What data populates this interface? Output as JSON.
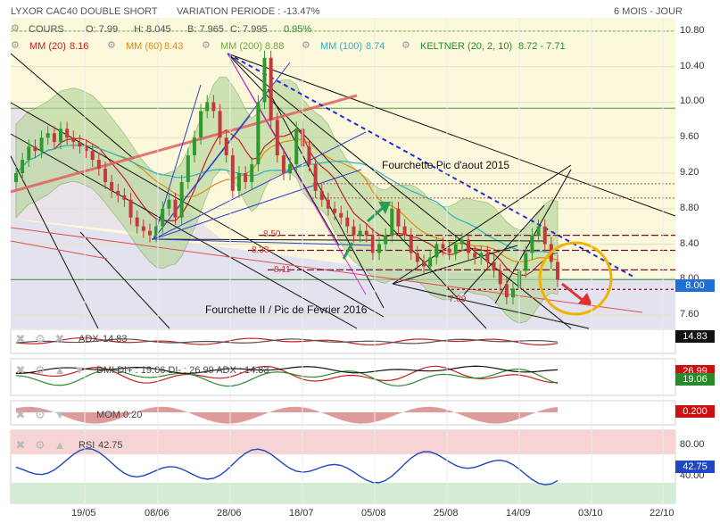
{
  "header": {
    "title": "LYXOR CAC40 DOUBLE SHORT",
    "variation": "VARIATION PERIODE : -13.47%",
    "period": "6 MOIS - JOUR"
  },
  "legend": {
    "cours_label": "COURS",
    "open": "O: 7.99",
    "high": "H: 8.045",
    "low": "B: 7.965",
    "close": "C: 7.995",
    "change": "0.95%",
    "mm20": "MM (20)",
    "mm20_val": "8.16",
    "mm60": "MM (60)",
    "mm60_val": "8.43",
    "mm200": "MM (200)",
    "mm200_val": "8.88",
    "mm100": "MM (100)",
    "mm100_val": "8.74",
    "keltner": "KELTNER (20, 2, 10)",
    "keltner_val": "8.72 - 7.71"
  },
  "annotations": {
    "fourchette_aout": "Fourchette Pic d'aout 2015",
    "fourchette_fevrier": "Fourchette II / Pic de Février 2016",
    "lvl1": "8.50",
    "lvl2": "8.33",
    "lvl3": "8.11",
    "lvl4": "7.89"
  },
  "price_tag": "8.00",
  "y_ticks": [
    "10.80",
    "10.40",
    "10.00",
    "9.60",
    "9.20",
    "8.80",
    "8.40",
    "8.00",
    "7.60"
  ],
  "x_ticks": [
    "19/05",
    "08/06",
    "28/06",
    "18/07",
    "05/08",
    "25/08",
    "14/09",
    "03/10",
    "22/10"
  ],
  "indicators": {
    "adx": {
      "label": "ADX",
      "value": "14.83",
      "tag": "14.83"
    },
    "dmi": {
      "label": "DMI DI+ : 19.06 DI- : 26.99 ADX : 14.83",
      "tag_minus": "26.99",
      "tag_plus": "19.06"
    },
    "mom": {
      "label": "MOM",
      "value": "0.20",
      "tag": "0.200"
    },
    "rsi": {
      "label": "RSI",
      "value": "42.75",
      "tag": "42.75",
      "upper": "80.00",
      "lower": "40.00"
    }
  },
  "colors": {
    "price_bg": "#fcf8dc",
    "lower_band_bg": "#dcdcf4",
    "keltner_fill": "#b6d69a",
    "up_candle": "#2e9a2e",
    "down_candle": "#c43a3a",
    "tag_price": "#1f6fd6",
    "tag_adx": "#111111",
    "tag_red": "#cc1010",
    "tag_green": "#2a8a2a",
    "tag_blue": "#1f47c0",
    "circle": "#f0b400"
  },
  "chart_data": {
    "type": "candlestick",
    "title": "LYXOR CAC40 DOUBLE SHORT",
    "x_ticks": [
      "19/05",
      "08/06",
      "28/06",
      "18/07",
      "05/08",
      "25/08",
      "14/09",
      "03/10",
      "22/10"
    ],
    "ylim": [
      7.45,
      10.95
    ],
    "y_ticks": [
      10.8,
      10.4,
      10.0,
      9.6,
      9.2,
      8.8,
      8.4,
      8.0,
      7.6
    ],
    "close": [
      9.2,
      9.35,
      9.5,
      9.45,
      9.6,
      9.65,
      9.55,
      9.7,
      9.6,
      9.55,
      9.5,
      9.45,
      9.35,
      9.25,
      9.1,
      9.0,
      8.95,
      8.9,
      8.7,
      8.6,
      8.55,
      8.5,
      8.6,
      8.8,
      8.9,
      8.7,
      9.1,
      9.4,
      9.6,
      9.9,
      10.0,
      9.9,
      9.6,
      9.4,
      9.0,
      9.2,
      9.1,
      9.3,
      10.0,
      10.5,
      9.8,
      9.4,
      9.2,
      9.3,
      9.7,
      9.5,
      9.3,
      9.0,
      8.9,
      8.8,
      8.75,
      8.7,
      8.6,
      8.5,
      8.55,
      8.5,
      8.3,
      8.4,
      8.5,
      8.8,
      8.6,
      8.5,
      8.3,
      8.2,
      8.15,
      8.25,
      8.4,
      8.35,
      8.3,
      8.4,
      8.45,
      8.3,
      8.25,
      8.3,
      8.2,
      8.1,
      7.95,
      7.8,
      7.9,
      8.1,
      8.3,
      8.5,
      8.6,
      8.4,
      8.2,
      8.0
    ],
    "moving_averages": {
      "MM (20)": 8.16,
      "MM (60)": 8.43,
      "MM (200)": 8.88,
      "MM (100)": 8.74
    },
    "keltner": [
      8.72,
      7.71
    ],
    "levels": [
      8.5,
      8.33,
      8.11,
      7.89
    ],
    "last_price": 8.0,
    "indicators": {
      "ADX": 14.83,
      "DI+": 19.06,
      "DI-": 26.99,
      "MOM": 0.2,
      "RSI": 42.75,
      "RSI_bounds": [
        80.0,
        40.0
      ]
    }
  }
}
